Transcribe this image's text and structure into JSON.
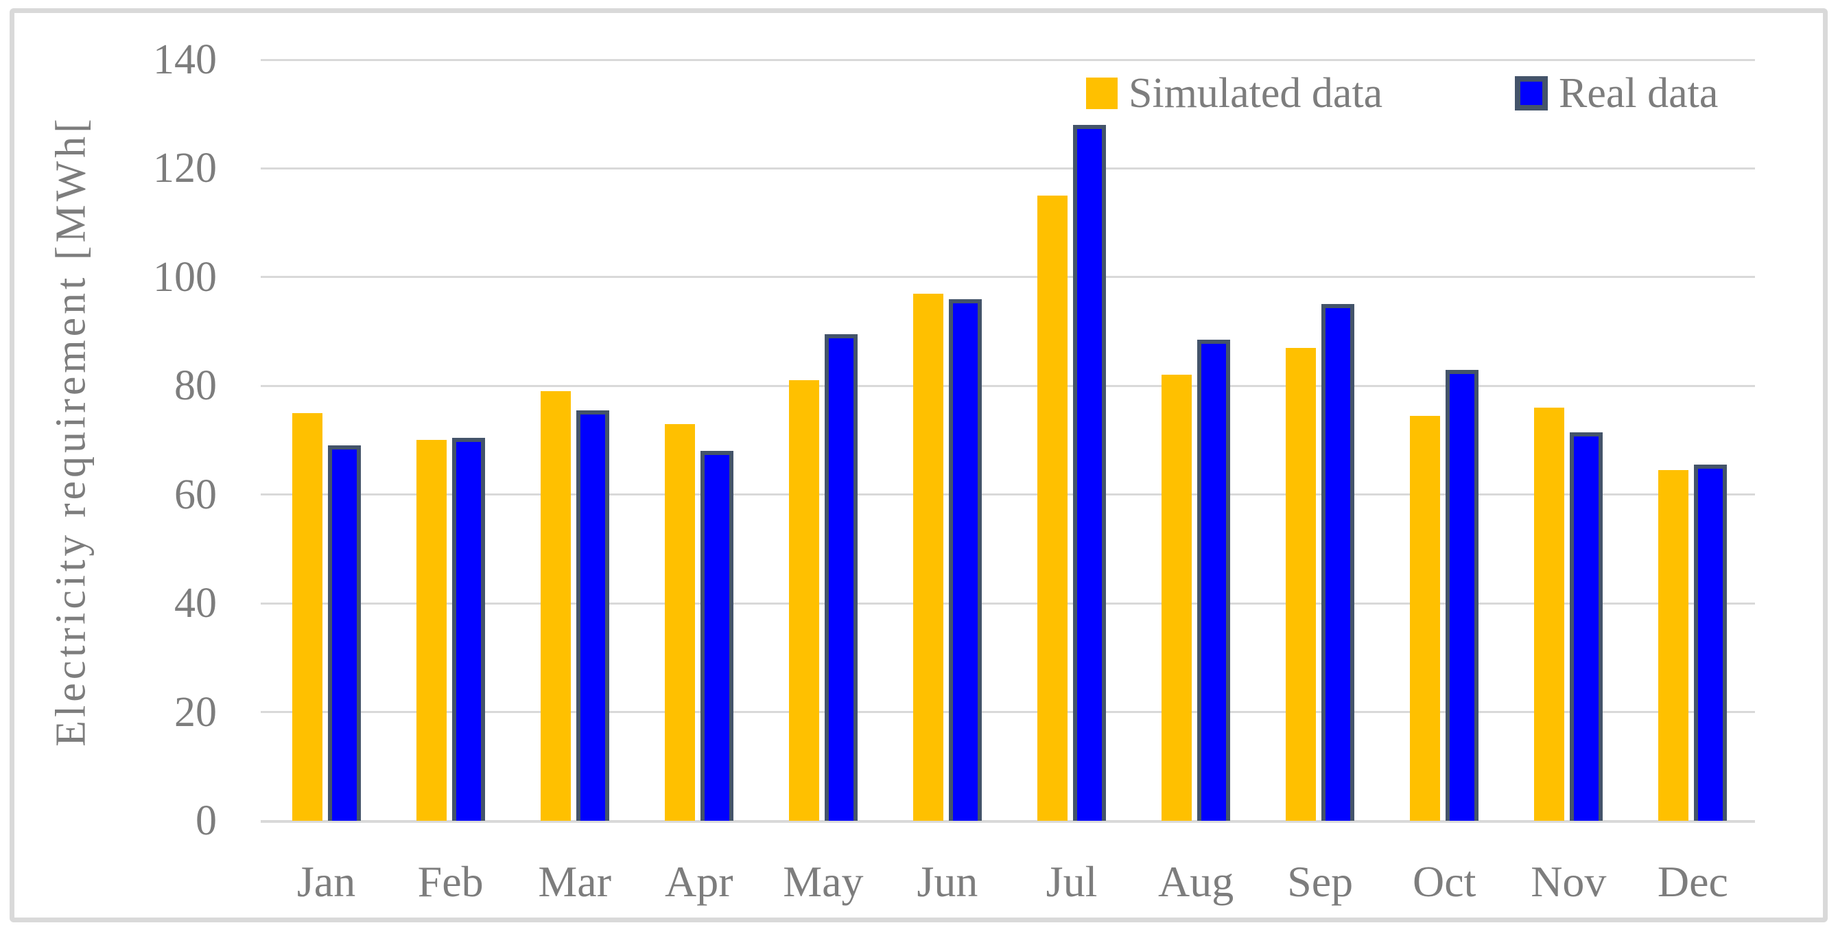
{
  "figure": {
    "background_color": "#FFFFFF",
    "border_color": "#D9D9D9",
    "text_color": "#7D7D7D",
    "gridline_color": "#D9D9D9"
  },
  "chart_data": {
    "type": "bar",
    "title": "",
    "ylabel": "Electricity requirement [MWh[",
    "xlabel": "",
    "categories": [
      "Jan",
      "Feb",
      "Mar",
      "Apr",
      "May",
      "Jun",
      "Jul",
      "Aug",
      "Sep",
      "Oct",
      "Nov",
      "Dec"
    ],
    "series": [
      {
        "name": "Simulated data",
        "color": "#FFC000",
        "values": [
          75,
          70,
          79,
          73,
          81,
          97,
          115,
          82,
          87,
          74.5,
          76,
          64.5
        ]
      },
      {
        "name": "Real data",
        "color": "#0000FF",
        "border_color": "#44546A",
        "values": [
          69,
          70.5,
          75.5,
          68,
          89.5,
          96,
          128,
          88.5,
          95,
          83,
          71.5,
          65.5
        ]
      }
    ],
    "ylim": [
      0,
      140
    ],
    "yticks": [
      0,
      20,
      40,
      60,
      80,
      100,
      120,
      140
    ],
    "grid": "horizontal",
    "legend_position": "top-right"
  }
}
